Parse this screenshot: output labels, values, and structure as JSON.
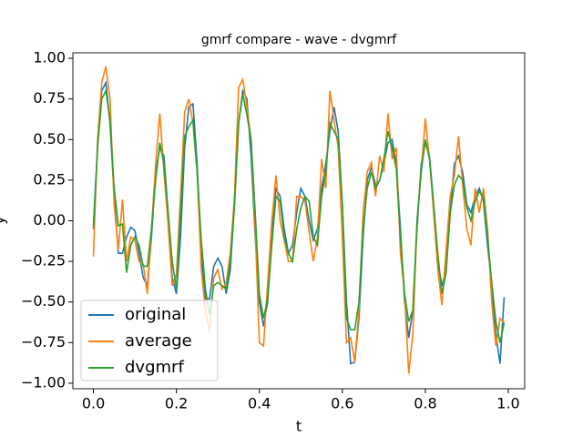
{
  "chart_data": {
    "type": "line",
    "title": "gmrf compare - wave - dvgmrf",
    "xlabel": "t",
    "ylabel": "y",
    "x": [
      0.0,
      0.01,
      0.02,
      0.03,
      0.04,
      0.05,
      0.06,
      0.07,
      0.08,
      0.09,
      0.1,
      0.11,
      0.12,
      0.13,
      0.14,
      0.15,
      0.16,
      0.17,
      0.18,
      0.19,
      0.2,
      0.21,
      0.22,
      0.23,
      0.24,
      0.25,
      0.26,
      0.27,
      0.28,
      0.29,
      0.3,
      0.31,
      0.32,
      0.33,
      0.34,
      0.35,
      0.36,
      0.37,
      0.38,
      0.39,
      0.4,
      0.41,
      0.42,
      0.43,
      0.44,
      0.45,
      0.46,
      0.47,
      0.48,
      0.49,
      0.5,
      0.51,
      0.52,
      0.53,
      0.54,
      0.55,
      0.56,
      0.57,
      0.58,
      0.59,
      0.6,
      0.61,
      0.62,
      0.63,
      0.64,
      0.65,
      0.66,
      0.67,
      0.68,
      0.69,
      0.7,
      0.71,
      0.72,
      0.73,
      0.74,
      0.75,
      0.76,
      0.77,
      0.78,
      0.79,
      0.8,
      0.81,
      0.82,
      0.83,
      0.84,
      0.85,
      0.86,
      0.87,
      0.88,
      0.89,
      0.9,
      0.91,
      0.92,
      0.93,
      0.94,
      0.95,
      0.96,
      0.97,
      0.98,
      0.99
    ],
    "series": [
      {
        "name": "original",
        "color": "#1f77b4",
        "values": [
          -0.03,
          0.45,
          0.8,
          0.85,
          0.6,
          0.15,
          -0.2,
          -0.2,
          -0.1,
          -0.04,
          -0.06,
          -0.2,
          -0.35,
          -0.4,
          -0.1,
          0.3,
          0.45,
          0.4,
          0.05,
          -0.35,
          -0.45,
          -0.1,
          0.45,
          0.7,
          0.72,
          0.35,
          -0.2,
          -0.48,
          -0.48,
          -0.28,
          -0.23,
          -0.28,
          -0.45,
          -0.3,
          0.1,
          0.6,
          0.8,
          0.75,
          0.4,
          -0.1,
          -0.5,
          -0.65,
          -0.5,
          -0.1,
          0.2,
          0.15,
          -0.05,
          -0.2,
          -0.15,
          0.05,
          0.2,
          0.15,
          0.0,
          -0.12,
          -0.05,
          0.2,
          0.35,
          0.55,
          0.7,
          0.55,
          0.1,
          -0.5,
          -0.88,
          -0.87,
          -0.6,
          -0.1,
          0.25,
          0.33,
          0.22,
          0.25,
          0.35,
          0.48,
          0.5,
          0.35,
          -0.05,
          -0.5,
          -0.72,
          -0.55,
          -0.05,
          0.35,
          0.48,
          0.4,
          0.1,
          -0.25,
          -0.4,
          -0.3,
          0.05,
          0.35,
          0.4,
          0.3,
          0.1,
          0.05,
          0.15,
          0.2,
          0.12,
          -0.15,
          -0.4,
          -0.7,
          -0.88,
          -0.47
        ]
      },
      {
        "name": "average",
        "color": "#ff7f0e",
        "values": [
          -0.22,
          0.5,
          0.85,
          0.95,
          0.75,
          0.1,
          -0.18,
          0.13,
          -0.25,
          -0.1,
          -0.12,
          -0.25,
          -0.27,
          -0.45,
          -0.05,
          0.35,
          0.66,
          0.3,
          -0.02,
          -0.4,
          -0.33,
          0.15,
          0.67,
          0.75,
          0.6,
          0.3,
          -0.3,
          -0.55,
          -0.68,
          -0.35,
          -0.3,
          -0.42,
          -0.38,
          -0.2,
          0.15,
          0.82,
          0.87,
          0.7,
          0.5,
          -0.05,
          -0.75,
          -0.77,
          -0.38,
          0.0,
          0.28,
          0.0,
          -0.12,
          -0.25,
          -0.25,
          0.15,
          0.15,
          0.12,
          -0.07,
          -0.25,
          -0.1,
          0.38,
          0.2,
          0.8,
          0.62,
          0.45,
          -0.1,
          -0.75,
          -0.72,
          -0.87,
          -0.55,
          0.05,
          0.3,
          0.36,
          0.15,
          0.4,
          0.3,
          0.66,
          0.38,
          0.45,
          -0.2,
          -0.45,
          -0.94,
          -0.7,
          0.0,
          0.3,
          0.63,
          0.38,
          0.05,
          -0.3,
          -0.52,
          -0.18,
          0.15,
          0.28,
          0.52,
          0.22,
          -0.05,
          -0.15,
          0.2,
          0.05,
          0.2,
          -0.05,
          -0.5,
          -0.77,
          -0.6,
          -0.63
        ]
      },
      {
        "name": "dvgmrf",
        "color": "#2ca02c",
        "values": [
          -0.05,
          0.45,
          0.75,
          0.8,
          0.62,
          0.2,
          -0.03,
          -0.02,
          -0.32,
          -0.15,
          -0.1,
          -0.15,
          -0.28,
          -0.28,
          -0.05,
          0.25,
          0.48,
          0.35,
          0.05,
          -0.25,
          -0.42,
          0.05,
          0.52,
          0.58,
          0.62,
          0.3,
          -0.12,
          -0.42,
          -0.58,
          -0.4,
          -0.38,
          -0.4,
          -0.42,
          -0.25,
          0.1,
          0.6,
          0.78,
          0.65,
          0.5,
          0.05,
          -0.45,
          -0.6,
          -0.48,
          -0.15,
          0.15,
          0.12,
          -0.1,
          -0.2,
          -0.25,
          -0.05,
          0.08,
          0.15,
          0.12,
          -0.1,
          -0.15,
          0.15,
          0.3,
          0.6,
          0.55,
          0.5,
          0.1,
          -0.6,
          -0.67,
          -0.67,
          -0.5,
          -0.05,
          0.2,
          0.3,
          0.2,
          0.25,
          0.38,
          0.55,
          0.45,
          0.32,
          -0.1,
          -0.45,
          -0.62,
          -0.55,
          0.0,
          0.3,
          0.5,
          0.38,
          0.1,
          -0.2,
          -0.45,
          -0.32,
          0.05,
          0.22,
          0.28,
          0.25,
          0.08,
          0.0,
          0.12,
          0.18,
          0.15,
          -0.1,
          -0.38,
          -0.62,
          -0.75,
          -0.63
        ]
      }
    ],
    "xlim": [
      -0.0495,
      1.0395
    ],
    "xticks": [
      {
        "value": 0,
        "label": "0.0"
      },
      0.2,
      0.4,
      0.6,
      0.8,
      {
        "value": 1,
        "label": "1.0"
      }
    ],
    "ylim": [
      -1.034,
      1.034
    ],
    "yticks": [
      {
        "value": -1,
        "label": "−1.00"
      },
      {
        "value": -0.75,
        "label": "−0.75"
      },
      {
        "value": -0.5,
        "label": "−0.50"
      },
      {
        "value": -0.25,
        "label": "−0.25"
      },
      {
        "value": 0,
        "label": "0.00"
      },
      {
        "value": 0.25,
        "label": "0.25"
      },
      {
        "value": 0.5,
        "label": "0.50"
      },
      {
        "value": 0.75,
        "label": "0.75"
      },
      {
        "value": 1,
        "label": "1.00"
      }
    ],
    "legend": "lower left"
  }
}
